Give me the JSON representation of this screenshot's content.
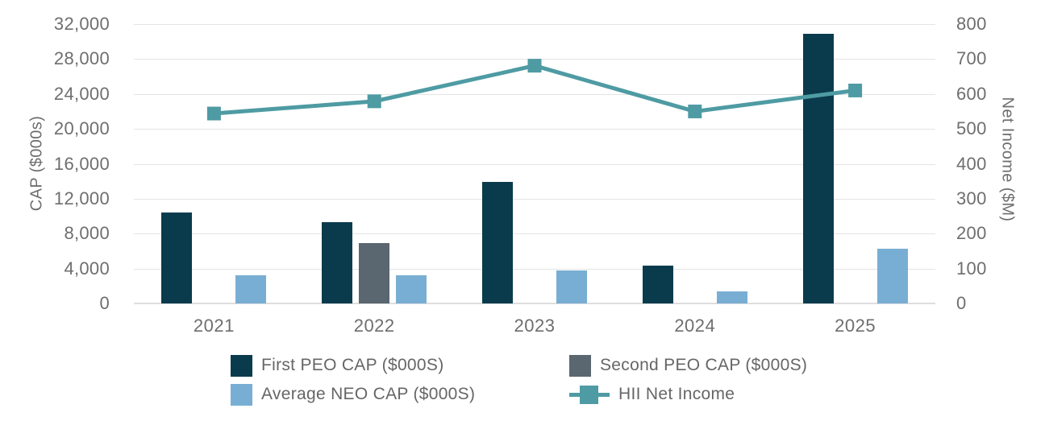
{
  "chart_data": {
    "type": "combo-bar-line",
    "title": "",
    "categories": [
      "2021",
      "2022",
      "2023",
      "2024",
      "2025"
    ],
    "series": [
      {
        "name": "First PEO CAP ($000S)",
        "type": "bar",
        "axis": "left",
        "color": "#0a3b4d",
        "values": [
          10450,
          9330,
          13950,
          4340,
          30900
        ]
      },
      {
        "name": "Second PEO CAP ($000S)",
        "type": "bar",
        "axis": "left",
        "color": "#5a6670",
        "values": [
          null,
          6950,
          null,
          null,
          null
        ]
      },
      {
        "name": "Average NEO CAP ($000S)",
        "type": "bar",
        "axis": "left",
        "color": "#79aed4",
        "values": [
          3200,
          3260,
          3790,
          1360,
          6310
        ]
      },
      {
        "name": "HII Net Income",
        "type": "line",
        "axis": "right",
        "color": "#4e9ba3",
        "values": [
          544,
          579,
          681,
          550,
          610
        ]
      }
    ],
    "left_axis": {
      "label": "CAP ($000s)",
      "min": 0,
      "max": 32000,
      "step": 4000,
      "tick_labels": [
        "0",
        "4,000",
        "8,000",
        "12,000",
        "16,000",
        "20,000",
        "24,000",
        "28,000",
        "32,000"
      ]
    },
    "right_axis": {
      "label": "Net Income ($M)",
      "min": 0,
      "max": 800,
      "step": 100,
      "tick_labels": [
        "0",
        "100",
        "200",
        "300",
        "400",
        "500",
        "600",
        "700",
        "800"
      ]
    },
    "grid": "horizontal-only",
    "legend_position": "bottom",
    "legend_columns": 2,
    "colors": {
      "background": "#ffffff",
      "gridline": "#e4e4e4",
      "axis_baseline": "#dedede",
      "tick_text": "#6e6e6e",
      "legend_text": "#666666"
    }
  }
}
